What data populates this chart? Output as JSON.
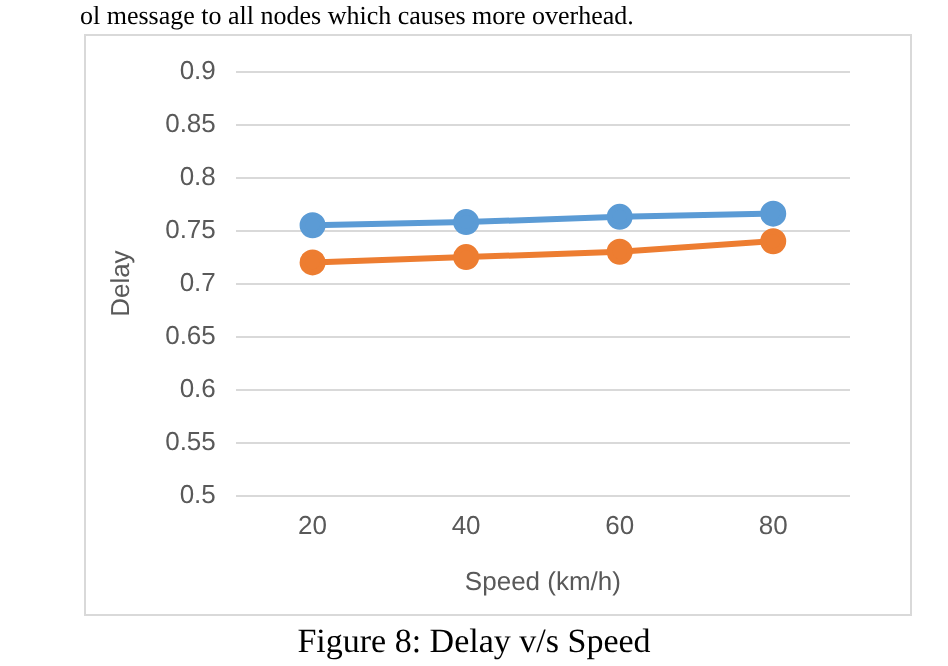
{
  "chart_data": {
    "type": "line",
    "title": "Figure 8: Delay v/s Speed",
    "annotations": [
      "ol message to all nodes which causes more overhead."
    ],
    "xlabel": "Speed (km/h)",
    "ylabel": "Delay",
    "categories": [
      "20",
      "40",
      "60",
      "80"
    ],
    "series": [
      {
        "color": "#5b9bd5",
        "values": [
          0.755,
          0.758,
          0.763,
          0.766
        ]
      },
      {
        "color": "#ed7d31",
        "values": [
          0.72,
          0.725,
          0.73,
          0.74
        ]
      }
    ],
    "ylim": [
      0.5,
      0.9
    ],
    "yticks": [
      0.5,
      0.55,
      0.6,
      0.65,
      0.7,
      0.75,
      0.8,
      0.85,
      0.9
    ],
    "grid": "y",
    "legend": false,
    "marker": "circle",
    "line_style": "solid"
  }
}
